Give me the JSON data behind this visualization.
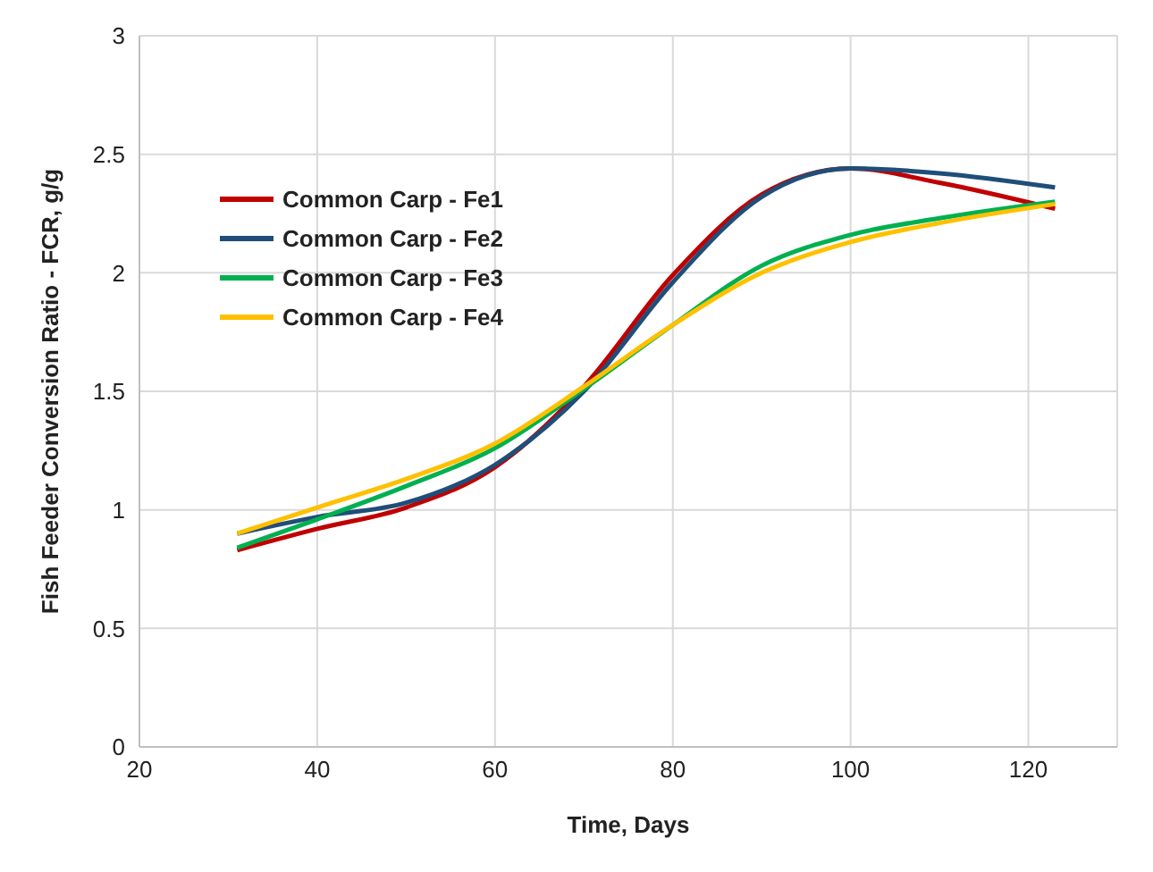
{
  "chart_data": {
    "type": "line",
    "xlabel": "Time, Days",
    "ylabel": "Fish Feeder Conversion Ratio  -  FCR, g/g",
    "x": [
      31,
      40,
      50,
      60,
      70,
      80,
      90,
      100,
      110,
      123
    ],
    "series": [
      {
        "name": "Common Carp - Fe1",
        "color": "#c00000",
        "values": [
          0.83,
          0.92,
          1.01,
          1.18,
          1.52,
          1.99,
          2.33,
          2.44,
          2.38,
          2.27
        ]
      },
      {
        "name": "Common Carp - Fe2",
        "color": "#1f4e79",
        "values": [
          0.9,
          0.97,
          1.03,
          1.19,
          1.5,
          1.96,
          2.32,
          2.44,
          2.42,
          2.36
        ]
      },
      {
        "name": "Common Carp - Fe3",
        "color": "#00b050",
        "values": [
          0.84,
          0.96,
          1.1,
          1.26,
          1.51,
          1.78,
          2.03,
          2.16,
          2.23,
          2.3
        ]
      },
      {
        "name": "Common Carp - Fe4",
        "color": "#ffc000",
        "values": [
          0.9,
          1.01,
          1.13,
          1.28,
          1.52,
          1.78,
          2.0,
          2.13,
          2.21,
          2.29
        ]
      }
    ],
    "xlim": [
      20,
      130
    ],
    "xticks": [
      20,
      40,
      60,
      80,
      100,
      120
    ],
    "ylim": [
      0,
      3
    ],
    "yticks": [
      0,
      0.5,
      1,
      1.5,
      2,
      2.5,
      3
    ],
    "grid": true,
    "legend": "top left",
    "marker": "none",
    "line_style": "solid"
  }
}
